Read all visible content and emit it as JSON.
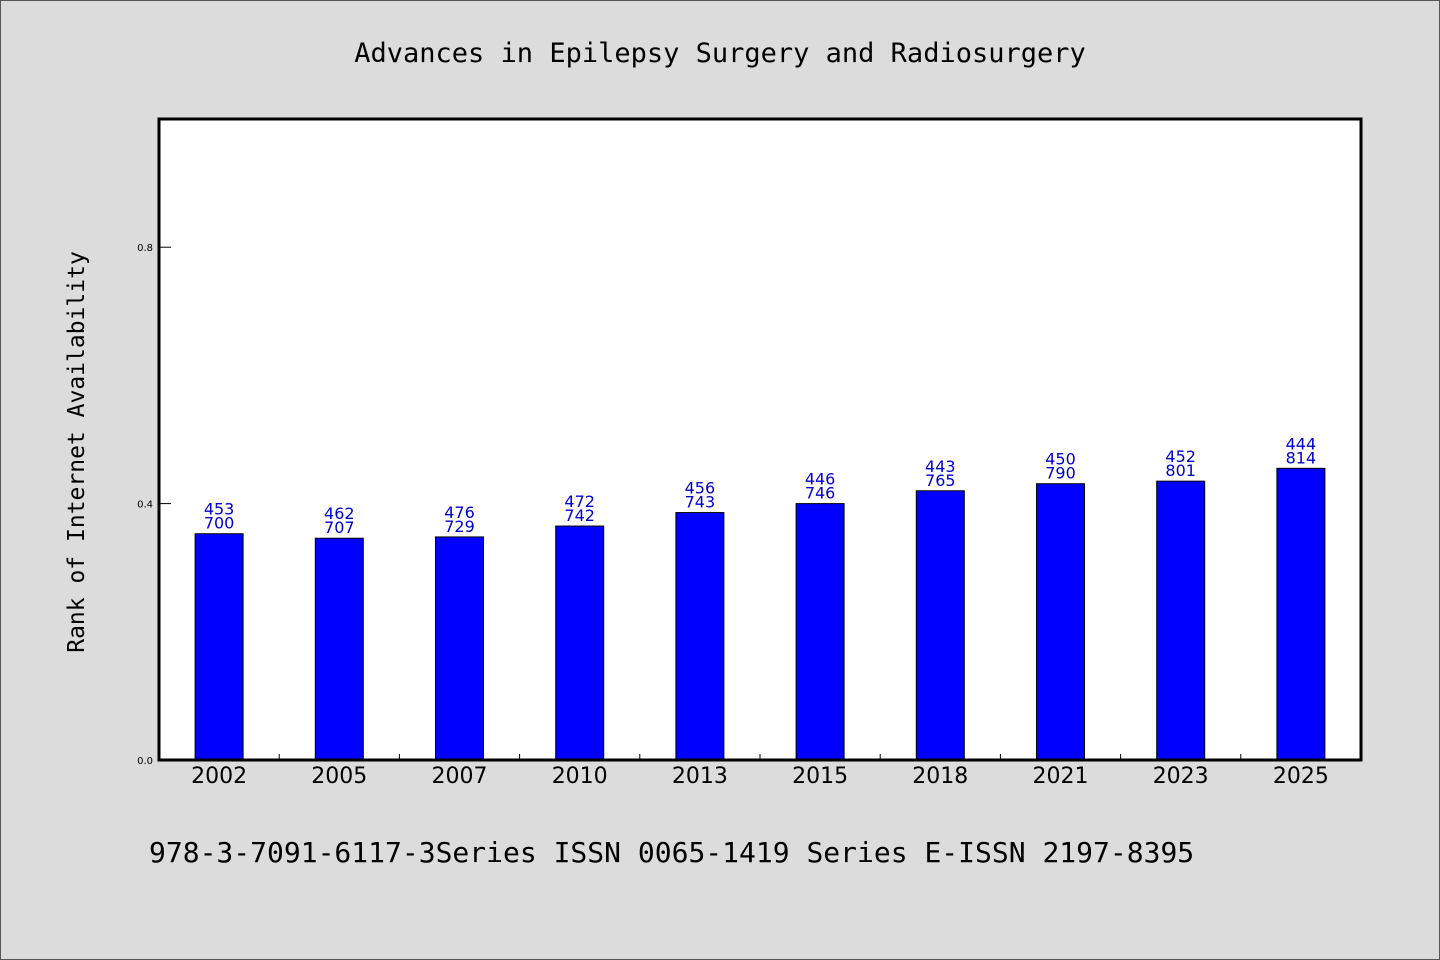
{
  "chart_data": {
    "type": "bar",
    "title": "Advances in Epilepsy Surgery and Radiosurgery",
    "ylabel": "Rank of Internet Availability",
    "xlabel": "",
    "categories": [
      "2002",
      "2005",
      "2007",
      "2010",
      "2013",
      "2015",
      "2018",
      "2021",
      "2023",
      "2025"
    ],
    "values": [
      0.353,
      0.346,
      0.348,
      0.365,
      0.386,
      0.4,
      0.42,
      0.431,
      0.435,
      0.455
    ],
    "bar_labels": [
      [
        "453",
        "700"
      ],
      [
        "462",
        "707"
      ],
      [
        "476",
        "729"
      ],
      [
        "472",
        "742"
      ],
      [
        "456",
        "743"
      ],
      [
        "446",
        "746"
      ],
      [
        "443",
        "765"
      ],
      [
        "450",
        "790"
      ],
      [
        "452",
        "801"
      ],
      [
        "444",
        "814"
      ]
    ],
    "yticks": [
      "0.0",
      "0.4",
      "0.8"
    ],
    "ytick_values": [
      0.0,
      0.4,
      0.8
    ],
    "ylim": [
      0,
      1.0
    ],
    "grid": false,
    "bar_color": "#0000ff",
    "label_color": "#0000cd"
  },
  "footer": "978-3-7091-6117-3Series ISSN 0065-1419 Series E-ISSN 2197-8395"
}
